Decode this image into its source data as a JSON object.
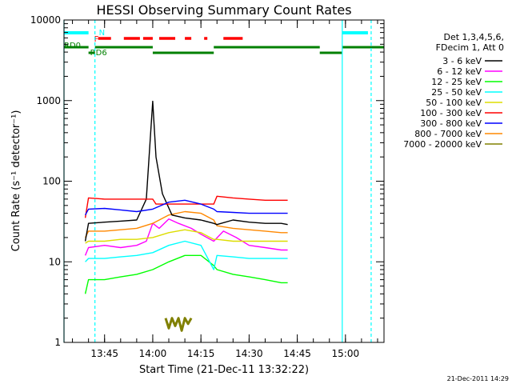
{
  "chart_data": {
    "type": "line",
    "title": "HESSI Observing Summary Count Rates",
    "xlabel": "Start Time (21-Dec-11 13:32:22)",
    "ylabel": "Count Rate (s⁻¹ detector⁻¹)",
    "yscale": "log",
    "ylim": [
      1,
      10000
    ],
    "xlim": [
      "13:32:22",
      "15:12:00"
    ],
    "y_ticks": [
      1,
      10,
      100,
      1000,
      10000
    ],
    "y_tick_labels": [
      "1",
      "10",
      "100",
      "1000",
      "10000"
    ],
    "x_ticks": [
      "13:45",
      "14:00",
      "14:15",
      "14:30",
      "14:45",
      "15:00"
    ],
    "grid": false,
    "legend_position": "right",
    "legend_header": [
      "Det 1,3,4,5,6,",
      "FDecim 1, Att 0"
    ],
    "timestamp": "21-Dec-2011 14:29",
    "series": [
      {
        "name": "3 - 6 keV",
        "color": "#000000",
        "x": [
          "13:39",
          "13:40",
          "13:45",
          "13:50",
          "13:55",
          "13:58",
          "14:00",
          "14:01",
          "14:03",
          "14:06",
          "14:10",
          "14:15",
          "14:19",
          "14:20",
          "14:25",
          "14:30",
          "14:35",
          "14:40",
          "14:42"
        ],
        "y": [
          18,
          30,
          31,
          32,
          33,
          60,
          980,
          200,
          70,
          38,
          35,
          33,
          30,
          29,
          33,
          31,
          30,
          30,
          29
        ]
      },
      {
        "name": "6 - 12 keV",
        "color": "#ff00ff",
        "x": [
          "13:39",
          "13:40",
          "13:45",
          "13:50",
          "13:55",
          "13:58",
          "14:00",
          "14:02",
          "14:05",
          "14:08",
          "14:12",
          "14:15",
          "14:19",
          "14:22",
          "14:26",
          "14:30",
          "14:35",
          "14:40",
          "14:42"
        ],
        "y": [
          12,
          15,
          16,
          15,
          16,
          18,
          30,
          26,
          34,
          30,
          26,
          22,
          18,
          24,
          20,
          16,
          15,
          14,
          14
        ]
      },
      {
        "name": "12 - 25 keV",
        "color": "#00ff00",
        "x": [
          "13:39",
          "13:40",
          "13:45",
          "13:50",
          "13:55",
          "14:00",
          "14:05",
          "14:10",
          "14:15",
          "14:19",
          "14:20",
          "14:25",
          "14:30",
          "14:35",
          "14:40",
          "14:42"
        ],
        "y": [
          4,
          6,
          6,
          6.5,
          7,
          8,
          10,
          12,
          12,
          9,
          8,
          7,
          6.5,
          6,
          5.5,
          5.5
        ]
      },
      {
        "name": "25 - 50 keV",
        "color": "#00ffff",
        "x": [
          "13:39",
          "13:40",
          "13:45",
          "13:50",
          "13:55",
          "14:00",
          "14:05",
          "14:10",
          "14:15",
          "14:19",
          "14:20",
          "14:25",
          "14:30",
          "14:35",
          "14:40",
          "14:42"
        ],
        "y": [
          10,
          11,
          11,
          11.5,
          12,
          13,
          16,
          18,
          16,
          8,
          12,
          11.5,
          11,
          11,
          11,
          11
        ]
      },
      {
        "name": "50 - 100 keV",
        "color": "#dddd00",
        "x": [
          "13:39",
          "13:40",
          "13:45",
          "13:50",
          "13:55",
          "14:00",
          "14:05",
          "14:10",
          "14:15",
          "14:19",
          "14:20",
          "14:25",
          "14:30",
          "14:35",
          "14:40",
          "14:42"
        ],
        "y": [
          17,
          18,
          18,
          19,
          19,
          20,
          23,
          25,
          23,
          19,
          19,
          18,
          18,
          18,
          18,
          18
        ]
      },
      {
        "name": "100 - 300 keV",
        "color": "#ff0000",
        "x": [
          "13:39",
          "13:40",
          "13:45",
          "13:50",
          "13:55",
          "14:00",
          "14:01",
          "14:05",
          "14:10",
          "14:15",
          "14:19",
          "14:20",
          "14:25",
          "14:30",
          "14:35",
          "14:40",
          "14:42"
        ],
        "y": [
          35,
          62,
          60,
          60,
          60,
          60,
          52,
          52,
          52,
          52,
          52,
          65,
          62,
          60,
          58,
          58,
          58
        ]
      },
      {
        "name": "300 - 800 keV",
        "color": "#0000ff",
        "x": [
          "13:39",
          "13:40",
          "13:45",
          "13:50",
          "13:55",
          "14:00",
          "14:05",
          "14:10",
          "14:15",
          "14:19",
          "14:20",
          "14:25",
          "14:30",
          "14:35",
          "14:40",
          "14:42"
        ],
        "y": [
          38,
          45,
          46,
          44,
          42,
          45,
          55,
          58,
          52,
          45,
          42,
          41,
          40,
          40,
          40,
          40
        ]
      },
      {
        "name": "800 - 7000 keV",
        "color": "#ff8800",
        "x": [
          "13:39",
          "13:40",
          "13:45",
          "13:50",
          "13:55",
          "14:00",
          "14:05",
          "14:10",
          "14:15",
          "14:19",
          "14:20",
          "14:25",
          "14:30",
          "14:35",
          "14:40",
          "14:42"
        ],
        "y": [
          20,
          24,
          24,
          25,
          26,
          30,
          38,
          42,
          40,
          33,
          28,
          26,
          25,
          24,
          23,
          23
        ]
      },
      {
        "name": "7000 - 20000 keV",
        "color": "#808000",
        "x": [
          "14:04",
          "14:05",
          "14:06",
          "14:07",
          "14:08",
          "14:09",
          "14:10",
          "14:11",
          "14:12"
        ],
        "y": [
          2,
          1.5,
          2,
          1.6,
          2,
          1.4,
          2,
          1.7,
          2
        ]
      }
    ],
    "annotations": {
      "flags": [
        {
          "label": "N",
          "color": "#00ffff"
        },
        {
          "label": "F",
          "color": "#ff0000"
        },
        {
          "label": "RD0",
          "color": "#008000"
        },
        {
          "label": "RD6",
          "color": "#008000"
        }
      ],
      "saa_flag_intervals": [
        [
          "13:32:22",
          "13:40:00"
        ],
        [
          "14:59:00",
          "15:07:00"
        ]
      ],
      "flare_flag_intervals": [
        [
          "13:43:00",
          "13:47:00"
        ],
        [
          "13:51:00",
          "13:56:00"
        ],
        [
          "13:57:00",
          "14:00:00"
        ],
        [
          "14:02:00",
          "14:07:00"
        ],
        [
          "14:10:00",
          "14:12:00"
        ],
        [
          "14:16:00",
          "14:17:00"
        ],
        [
          "14:22:00",
          "14:28:00"
        ]
      ],
      "decimation_intervals": [
        {
          "level": "upper",
          "ranges": [
            [
              "13:32:22",
              "13:40:00"
            ],
            [
              "13:42:00",
              "14:00:00"
            ],
            [
              "14:19:00",
              "14:52:00"
            ],
            [
              "14:59:00",
              "15:12:00"
            ]
          ]
        },
        {
          "level": "lower",
          "ranges": [
            [
              "13:40:00",
              "13:42:00"
            ],
            [
              "14:00:00",
              "14:19:00"
            ],
            [
              "14:52:00",
              "14:59:00"
            ]
          ]
        }
      ],
      "vlines_solid": [
        "13:32:22",
        "14:59:00"
      ],
      "vlines_dashed": [
        "13:42:00",
        "15:08:00"
      ]
    }
  }
}
